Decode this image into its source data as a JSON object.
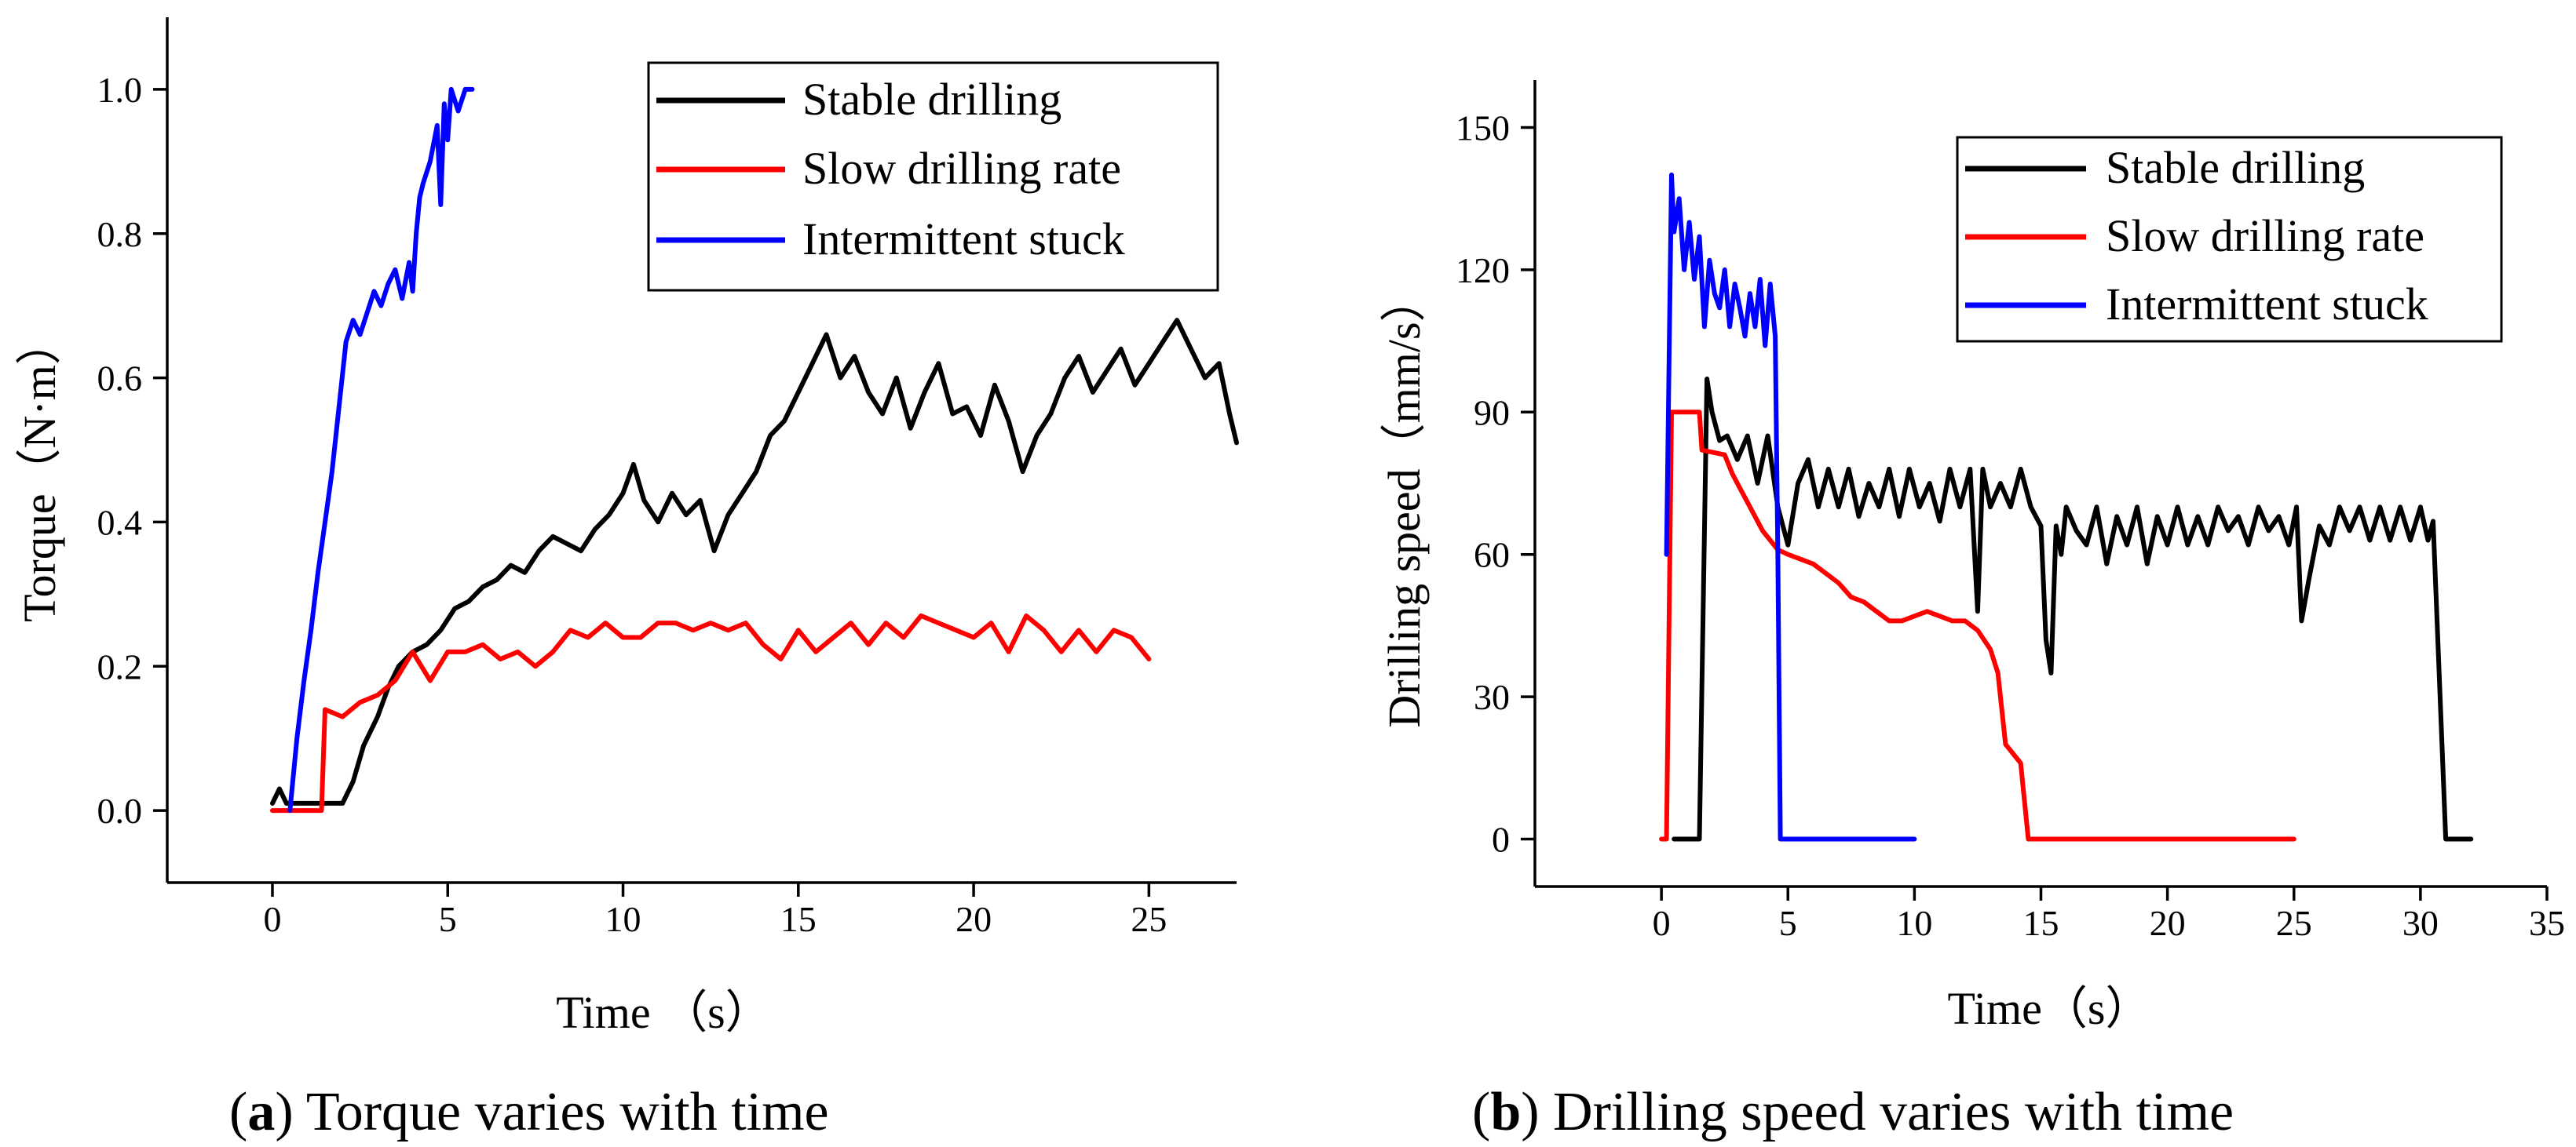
{
  "captions": [
    {
      "open": "(",
      "letter": "a",
      "rest": ") Torque varies with time"
    },
    {
      "open": "(",
      "letter": "b",
      "rest": ") Drilling speed varies with time"
    }
  ],
  "colors": {
    "stable": "#000000",
    "slow": "#ff0000",
    "stuck": "#0000ff"
  },
  "chart_data": [
    {
      "type": "line",
      "title": "(a) Torque varies with time",
      "xlabel": "Time （s）",
      "ylabel": "Torque（N·m）",
      "xlim": [
        -3,
        27.5
      ],
      "ylim": [
        -0.1,
        1.1
      ],
      "xticks": [
        0,
        5,
        10,
        15,
        20,
        25
      ],
      "yticks": [
        0.0,
        0.2,
        0.4,
        0.6,
        0.8,
        1.0
      ],
      "ytick_labels": [
        "0.0",
        "0.2",
        "0.4",
        "0.6",
        "0.8",
        "1.0"
      ],
      "legend": [
        "Stable drilling",
        "Slow drilling rate",
        "Intermittent stuck"
      ],
      "legend_position": "top-right",
      "series": [
        {
          "name": "Stable drilling",
          "color": "#000000",
          "x": [
            0,
            0.2,
            0.4,
            0.6,
            1.0,
            1.5,
            2.0,
            2.3,
            2.6,
            3.0,
            3.3,
            3.6,
            4.0,
            4.4,
            4.8,
            5.2,
            5.6,
            6.0,
            6.4,
            6.8,
            7.2,
            7.6,
            8.0,
            8.4,
            8.8,
            9.2,
            9.6,
            10.0,
            10.3,
            10.6,
            11.0,
            11.4,
            11.8,
            12.2,
            12.6,
            13.0,
            13.4,
            13.8,
            14.2,
            14.6,
            15.0,
            15.4,
            15.8,
            16.2,
            16.6,
            17.0,
            17.4,
            17.8,
            18.2,
            18.6,
            19.0,
            19.4,
            19.8,
            20.2,
            20.6,
            21.0,
            21.4,
            21.8,
            22.2,
            22.6,
            23.0,
            23.4,
            23.8,
            24.2,
            24.6,
            25.0,
            25.4,
            25.8,
            26.2,
            26.6,
            27.0,
            27.3,
            27.5
          ],
          "y": [
            0.01,
            0.03,
            0.01,
            0.01,
            0.01,
            0.01,
            0.01,
            0.04,
            0.09,
            0.13,
            0.17,
            0.2,
            0.22,
            0.23,
            0.25,
            0.28,
            0.29,
            0.31,
            0.32,
            0.34,
            0.33,
            0.36,
            0.38,
            0.37,
            0.36,
            0.39,
            0.41,
            0.44,
            0.48,
            0.43,
            0.4,
            0.44,
            0.41,
            0.43,
            0.36,
            0.41,
            0.44,
            0.47,
            0.52,
            0.54,
            0.58,
            0.62,
            0.66,
            0.6,
            0.63,
            0.58,
            0.55,
            0.6,
            0.53,
            0.58,
            0.62,
            0.55,
            0.56,
            0.52,
            0.59,
            0.54,
            0.47,
            0.52,
            0.55,
            0.6,
            0.63,
            0.58,
            0.61,
            0.64,
            0.59,
            0.62,
            0.65,
            0.68,
            0.64,
            0.6,
            0.62,
            0.55,
            0.51
          ]
        },
        {
          "name": "Slow drilling rate",
          "color": "#ff0000",
          "x": [
            0,
            0.5,
            1.0,
            1.4,
            1.5,
            2.0,
            2.5,
            3.0,
            3.5,
            4.0,
            4.5,
            5.0,
            5.5,
            6.0,
            6.5,
            7.0,
            7.5,
            8.0,
            8.5,
            9.0,
            9.5,
            10.0,
            10.5,
            11.0,
            11.5,
            12.0,
            12.5,
            13.0,
            13.5,
            14.0,
            14.5,
            15.0,
            15.5,
            16.0,
            16.5,
            17.0,
            17.5,
            18.0,
            18.5,
            19.0,
            19.5,
            20.0,
            20.5,
            21.0,
            21.5,
            22.0,
            22.5,
            23.0,
            23.5,
            24.0,
            24.5,
            25.0
          ],
          "y": [
            0.0,
            0.0,
            0.0,
            0.0,
            0.14,
            0.13,
            0.15,
            0.16,
            0.18,
            0.22,
            0.18,
            0.22,
            0.22,
            0.23,
            0.21,
            0.22,
            0.2,
            0.22,
            0.25,
            0.24,
            0.26,
            0.24,
            0.24,
            0.26,
            0.26,
            0.25,
            0.26,
            0.25,
            0.26,
            0.23,
            0.21,
            0.25,
            0.22,
            0.24,
            0.26,
            0.23,
            0.26,
            0.24,
            0.27,
            0.26,
            0.25,
            0.24,
            0.26,
            0.22,
            0.27,
            0.25,
            0.22,
            0.25,
            0.22,
            0.25,
            0.24,
            0.21
          ]
        },
        {
          "name": "Intermittent stuck",
          "color": "#0000ff",
          "x": [
            0.5,
            0.7,
            0.9,
            1.1,
            1.3,
            1.5,
            1.7,
            1.9,
            2.1,
            2.3,
            2.5,
            2.7,
            2.9,
            3.1,
            3.3,
            3.5,
            3.7,
            3.9,
            4.0,
            4.1,
            4.2,
            4.3,
            4.5,
            4.7,
            4.8,
            4.9,
            5.0,
            5.1,
            5.3,
            5.5,
            5.7
          ],
          "y": [
            0.0,
            0.1,
            0.18,
            0.25,
            0.33,
            0.4,
            0.47,
            0.56,
            0.65,
            0.68,
            0.66,
            0.69,
            0.72,
            0.7,
            0.73,
            0.75,
            0.71,
            0.76,
            0.72,
            0.8,
            0.85,
            0.87,
            0.9,
            0.95,
            0.84,
            0.98,
            0.93,
            1.0,
            0.97,
            1.0,
            1.0
          ]
        }
      ]
    },
    {
      "type": "line",
      "title": "(b) Drilling speed varies with time",
      "xlabel": "Time（s）",
      "ylabel": "Drilling speed（mm/s）",
      "xlim": [
        -5,
        35
      ],
      "ylim": [
        -10,
        160
      ],
      "xticks": [
        0,
        5,
        10,
        15,
        20,
        25,
        30,
        35
      ],
      "yticks": [
        0,
        30,
        60,
        90,
        120,
        150
      ],
      "ytick_labels": [
        "0",
        "30",
        "60",
        "90",
        "120",
        "150"
      ],
      "legend": [
        "Stable drilling",
        "Slow drilling rate",
        "Intermittent stuck"
      ],
      "legend_position": "top-right",
      "series": [
        {
          "name": "Stable drilling",
          "color": "#000000",
          "x": [
            0.5,
            1.0,
            1.5,
            1.8,
            2.0,
            2.3,
            2.6,
            3.0,
            3.4,
            3.8,
            4.2,
            4.6,
            5.0,
            5.4,
            5.8,
            6.2,
            6.6,
            7.0,
            7.4,
            7.8,
            8.2,
            8.6,
            9.0,
            9.4,
            9.8,
            10.2,
            10.6,
            11.0,
            11.4,
            11.8,
            12.2,
            12.5,
            12.7,
            13.0,
            13.4,
            13.8,
            14.2,
            14.6,
            15.0,
            15.2,
            15.4,
            15.6,
            15.8,
            16.0,
            16.4,
            16.8,
            17.2,
            17.6,
            18.0,
            18.4,
            18.8,
            19.2,
            19.6,
            20.0,
            20.4,
            20.8,
            21.2,
            21.6,
            22.0,
            22.4,
            22.8,
            23.2,
            23.6,
            24.0,
            24.4,
            24.8,
            25.1,
            25.3,
            25.6,
            26.0,
            26.4,
            26.8,
            27.2,
            27.6,
            28.0,
            28.4,
            28.8,
            29.2,
            29.6,
            30.0,
            30.3,
            30.5,
            31.0,
            31.5,
            32.0
          ],
          "y": [
            0,
            0,
            0,
            97,
            90,
            84,
            85,
            80,
            85,
            75,
            85,
            70,
            62,
            75,
            80,
            70,
            78,
            70,
            78,
            68,
            75,
            70,
            78,
            68,
            78,
            70,
            75,
            67,
            78,
            70,
            78,
            48,
            78,
            70,
            75,
            70,
            78,
            70,
            66,
            42,
            35,
            66,
            60,
            70,
            65,
            62,
            70,
            58,
            68,
            62,
            70,
            58,
            68,
            62,
            70,
            62,
            68,
            62,
            70,
            65,
            68,
            62,
            70,
            65,
            68,
            62,
            70,
            46,
            55,
            66,
            62,
            70,
            65,
            70,
            63,
            70,
            63,
            70,
            63,
            70,
            63,
            67,
            0,
            0,
            0
          ]
        },
        {
          "name": "Slow drilling rate",
          "color": "#ff0000",
          "x": [
            0,
            0.2,
            0.4,
            1.5,
            1.6,
            2.5,
            2.8,
            3.0,
            3.5,
            4.0,
            4.3,
            4.6,
            5.0,
            6.0,
            6.5,
            7.0,
            7.5,
            8.0,
            8.5,
            9.0,
            9.5,
            10.0,
            10.5,
            11.0,
            11.5,
            12.0,
            12.5,
            13.0,
            13.3,
            13.6,
            13.9,
            14.2,
            14.5,
            15.0,
            20.0,
            25.0
          ],
          "y": [
            0,
            0,
            90,
            90,
            82,
            81,
            77,
            75,
            70,
            65,
            63,
            61,
            60,
            58,
            56,
            54,
            51,
            50,
            48,
            46,
            46,
            47,
            48,
            47,
            46,
            46,
            44,
            40,
            35,
            20,
            18,
            16,
            0,
            0,
            0,
            0
          ]
        },
        {
          "name": "Intermittent stuck",
          "color": "#0000ff",
          "x": [
            0.2,
            0.4,
            0.5,
            0.7,
            0.9,
            1.1,
            1.3,
            1.5,
            1.7,
            1.9,
            2.1,
            2.3,
            2.5,
            2.7,
            2.9,
            3.1,
            3.3,
            3.5,
            3.7,
            3.9,
            4.1,
            4.3,
            4.5,
            4.6,
            4.7,
            4.8,
            5.0,
            6.0,
            8.0,
            10.0
          ],
          "y": [
            60,
            140,
            128,
            135,
            120,
            130,
            118,
            127,
            108,
            122,
            115,
            112,
            120,
            108,
            117,
            112,
            106,
            115,
            108,
            118,
            104,
            117,
            106,
            60,
            0,
            0,
            0,
            0,
            0,
            0
          ]
        }
      ]
    }
  ]
}
